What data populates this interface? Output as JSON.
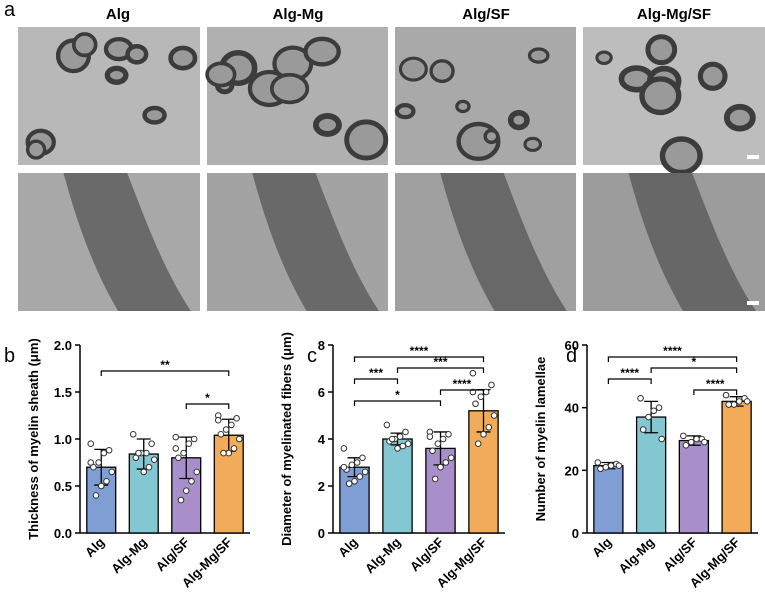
{
  "panel_labels": {
    "a": "a",
    "b": "b",
    "c": "c",
    "d": "d"
  },
  "image_titles": [
    "Alg",
    "Alg-Mg",
    "Alg/SF",
    "Alg-Mg/SF"
  ],
  "chart_data": [
    {
      "type": "bar",
      "ylabel": "Thickness of myelin sheath (μm)",
      "categories": [
        "Alg",
        "Alg-Mg",
        "Alg/SF",
        "Alg-Mg/SF"
      ],
      "colors": [
        "#7f9ed4",
        "#82c7d1",
        "#a98fc9",
        "#f2ab58"
      ],
      "values": [
        0.7,
        0.84,
        0.8,
        1.04
      ],
      "errors": [
        0.19,
        0.16,
        0.22,
        0.17
      ],
      "points": [
        [
          0.95,
          0.88,
          0.85,
          0.75,
          0.7,
          0.65,
          0.55,
          0.5,
          0.4,
          0.75
        ],
        [
          1.05,
          0.95,
          0.85,
          0.85,
          0.8,
          0.78,
          0.7,
          0.65,
          0.85
        ],
        [
          1.02,
          1.0,
          0.95,
          0.85,
          0.8,
          0.65,
          0.55,
          0.45,
          0.35,
          0.9
        ],
        [
          1.25,
          1.22,
          1.15,
          1.1,
          1.05,
          1.0,
          0.9,
          0.85,
          0.85,
          1.2
        ]
      ],
      "brackets": [
        {
          "from": 0,
          "to": 3,
          "label": "**"
        },
        {
          "from": 2,
          "to": 3,
          "label": "*"
        }
      ],
      "ylim": [
        0,
        2
      ],
      "yticks": [
        {
          "value": 0,
          "label": "0.0"
        },
        {
          "value": 0.5,
          "label": "0.5"
        },
        {
          "value": 1,
          "label": "1.0"
        },
        {
          "value": 1.5,
          "label": "1.5"
        },
        {
          "value": 2,
          "label": "2.0"
        }
      ]
    },
    {
      "type": "bar",
      "ylabel": "Diameter of myelinated fibers (μm)",
      "categories": [
        "Alg",
        "Alg-Mg",
        "Alg/SF",
        "Alg-Mg/SF"
      ],
      "colors": [
        "#7f9ed4",
        "#82c7d1",
        "#a98fc9",
        "#f2ab58"
      ],
      "values": [
        2.8,
        4.0,
        3.6,
        5.2
      ],
      "errors": [
        0.4,
        0.25,
        0.7,
        0.9
      ],
      "points": [
        [
          3.6,
          3.2,
          3.0,
          2.9,
          2.7,
          2.6,
          2.4,
          2.2,
          2.1,
          2.8
        ],
        [
          4.6,
          4.3,
          4.1,
          4.0,
          3.9,
          3.8,
          3.7,
          3.6,
          4.0
        ],
        [
          4.3,
          4.2,
          4.0,
          3.8,
          3.5,
          3.2,
          3.0,
          2.8,
          2.3,
          4.1
        ],
        [
          6.8,
          6.3,
          6.0,
          5.8,
          5.5,
          5.0,
          4.5,
          4.2,
          3.8,
          6.0
        ]
      ],
      "brackets": [
        {
          "from": 0,
          "to": 3,
          "label": "****"
        },
        {
          "from": 1,
          "to": 3,
          "label": "***"
        },
        {
          "from": 0,
          "to": 1,
          "label": "***"
        },
        {
          "from": 2,
          "to": 3,
          "label": "****"
        },
        {
          "from": 0,
          "to": 2,
          "label": "*"
        }
      ],
      "ylim": [
        0,
        8
      ],
      "yticks": [
        0,
        2,
        4,
        6,
        8
      ]
    },
    {
      "type": "bar",
      "ylabel": "Number of myelin lamellae",
      "categories": [
        "Alg",
        "Alg-Mg",
        "Alg/SF",
        "Alg-Mg/SF"
      ],
      "colors": [
        "#7f9ed4",
        "#82c7d1",
        "#a98fc9",
        "#f2ab58"
      ],
      "values": [
        21.5,
        37,
        29.5,
        42
      ],
      "errors": [
        1,
        5,
        1.5,
        1.5
      ],
      "points": [
        [
          22.5,
          22,
          21.5,
          21,
          20.5,
          21.5
        ],
        [
          43,
          40,
          39,
          37,
          33,
          30
        ],
        [
          31,
          30,
          30,
          29,
          28,
          29
        ],
        [
          44,
          43,
          42,
          41,
          41,
          42
        ]
      ],
      "brackets": [
        {
          "from": 0,
          "to": 3,
          "label": "****"
        },
        {
          "from": 1,
          "to": 3,
          "label": "*"
        },
        {
          "from": 0,
          "to": 1,
          "label": "****"
        },
        {
          "from": 2,
          "to": 3,
          "label": "****"
        }
      ],
      "ylim": [
        0,
        60
      ],
      "yticks": [
        0,
        20,
        40,
        60
      ]
    }
  ]
}
